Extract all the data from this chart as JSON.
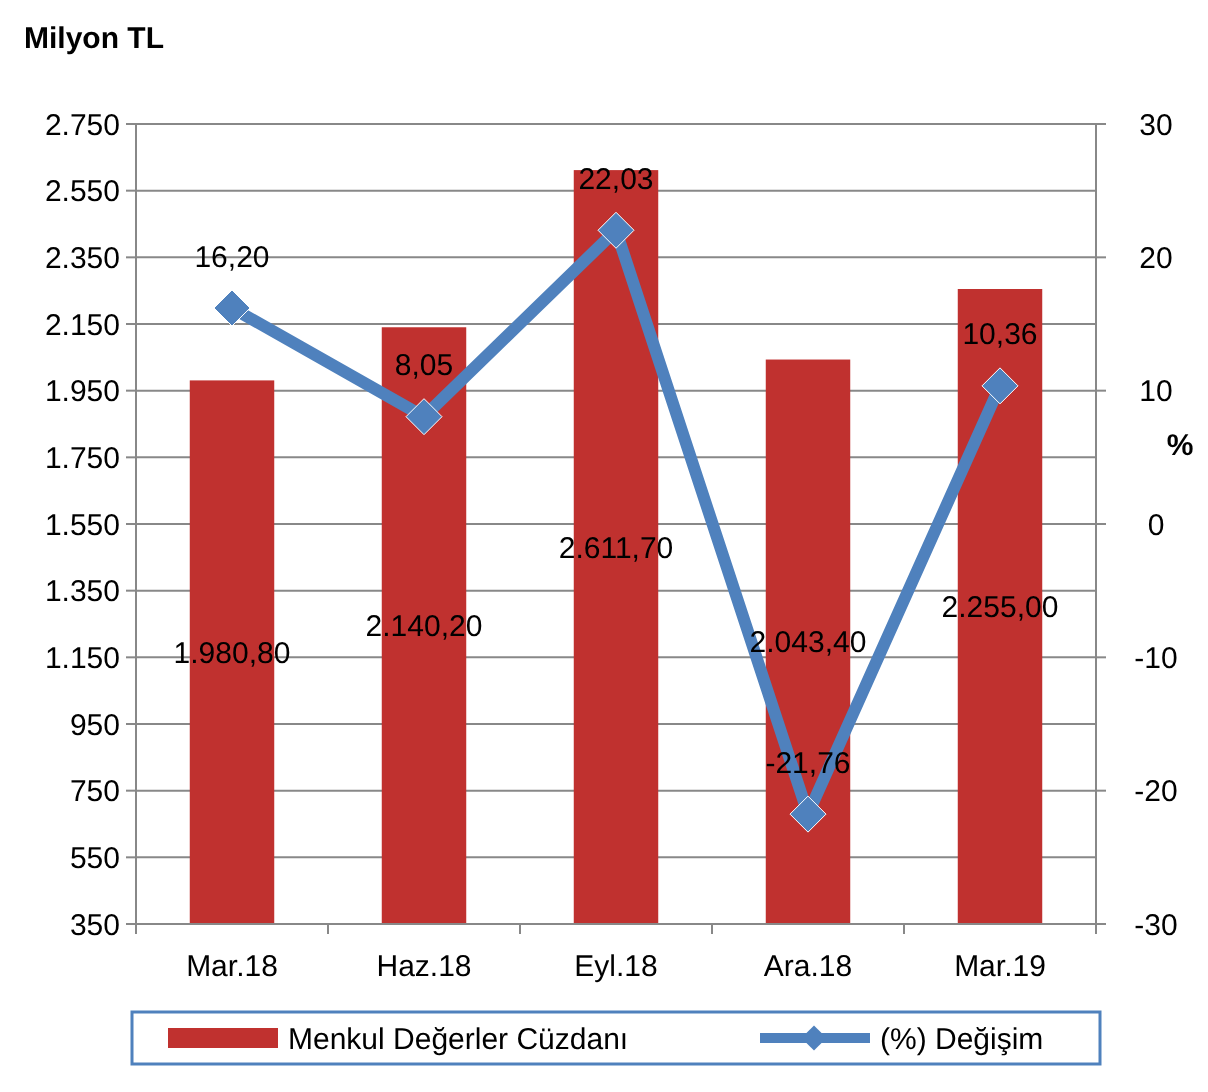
{
  "chart_data": {
    "type": "bar",
    "title": "Milyon TL",
    "y2label": "%",
    "categories": [
      "Mar.18",
      "Haz.18",
      "Eyl.18",
      "Ara.18",
      "Mar.19"
    ],
    "series": [
      {
        "name": "Menkul Değerler Cüzdanı",
        "color": "#c0312f",
        "values": [
          1980.8,
          2140.2,
          2611.7,
          2043.4,
          2255.0
        ],
        "value_labels": [
          "1.980,80",
          "2.140,20",
          "2.611,70",
          "2.043,40",
          "2.255,00"
        ]
      },
      {
        "name": "(%) Değişim",
        "type": "line",
        "axis": "y2",
        "color": "#4f81bd",
        "marker": "diamond",
        "values": [
          16.2,
          8.05,
          22.03,
          -21.76,
          10.36
        ],
        "value_labels": [
          "16,20",
          "8,05",
          "22,03",
          "-21,76",
          "10,36"
        ]
      }
    ],
    "ylim": [
      350,
      2750
    ],
    "yticks": [
      {
        "value": 350,
        "label": "350"
      },
      {
        "value": 550,
        "label": "550"
      },
      {
        "value": 750,
        "label": "750"
      },
      {
        "value": 950,
        "label": "950"
      },
      {
        "value": 1150,
        "label": "1.150"
      },
      {
        "value": 1350,
        "label": "1.350"
      },
      {
        "value": 1550,
        "label": "1.550"
      },
      {
        "value": 1750,
        "label": "1.750"
      },
      {
        "value": 1950,
        "label": "1.950"
      },
      {
        "value": 2150,
        "label": "2.150"
      },
      {
        "value": 2350,
        "label": "2.350"
      },
      {
        "value": 2550,
        "label": "2.550"
      },
      {
        "value": 2750,
        "label": "2.750"
      }
    ],
    "y2lim": [
      -30,
      30
    ],
    "y2ticks": [
      -30,
      -20,
      -10,
      0,
      10,
      20,
      30
    ],
    "grid": "y",
    "legend": "bottom"
  }
}
